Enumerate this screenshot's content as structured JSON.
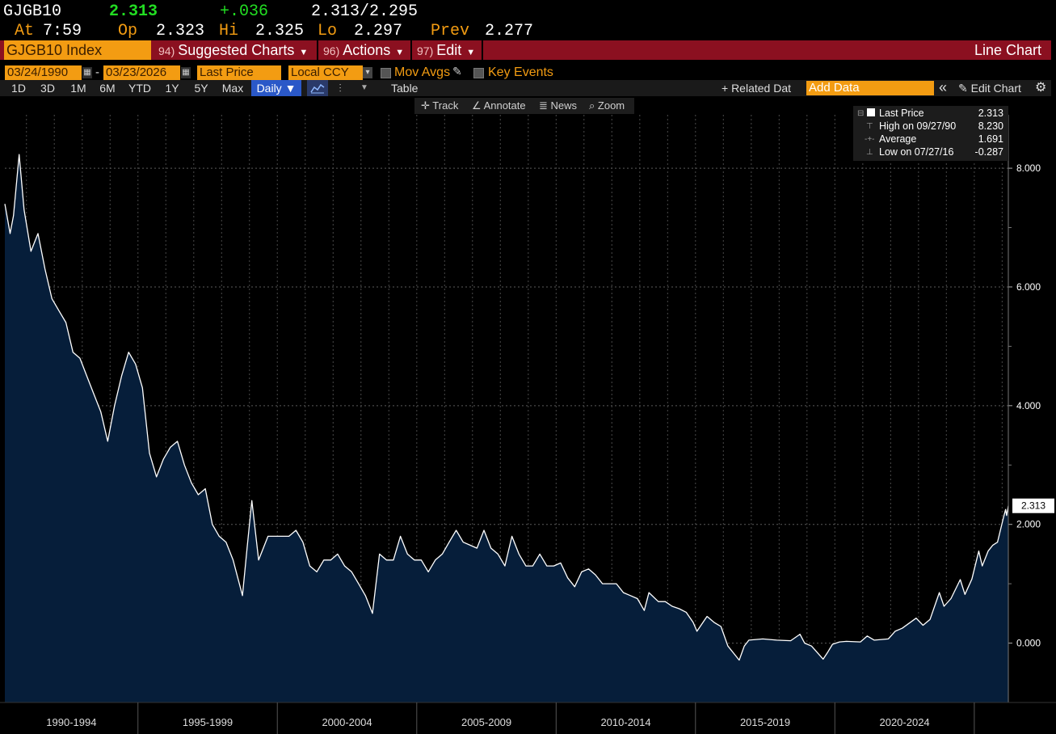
{
  "quote": {
    "ticker": "GJGB10",
    "last": "2.313",
    "change": "+.036",
    "bid_ask": "2.313/2.295",
    "at_label": "At",
    "time": "7:59",
    "open_label": "Op",
    "open": "2.323",
    "high_label": "Hi",
    "high": "2.325",
    "low_label": "Lo",
    "low": "2.297",
    "prev_label": "Prev",
    "prev": "2.277"
  },
  "command_bar": {
    "security": "GJGB10 Index",
    "suggested_num": "94)",
    "suggested_label": "Suggested Charts",
    "actions_num": "96)",
    "actions_label": "Actions",
    "edit_num": "97)",
    "edit_label": "Edit",
    "title": "Line Chart"
  },
  "settings": {
    "start_date": "03/24/1990",
    "dash": "-",
    "end_date": "03/23/2026",
    "field": "Last Price",
    "currency": "Local CCY",
    "mov_avgs": "Mov Avgs",
    "key_events": "Key Events"
  },
  "range_bar": {
    "buttons": [
      "1D",
      "3D",
      "1M",
      "6M",
      "YTD",
      "1Y",
      "5Y",
      "Max"
    ],
    "frequency": "Daily ▼",
    "table": "Table",
    "related": "+ Related Dat",
    "add_data_placeholder": "Add Data",
    "collapse": "«",
    "edit_chart": "Edit Chart"
  },
  "chart_tools": {
    "track": "Track",
    "annotate": "Annotate",
    "news": "News",
    "zoom": "Zoom"
  },
  "legend": {
    "last_label": "Last Price",
    "last_value": "2.313",
    "high_label": "High on 09/27/90",
    "high_value": "8.230",
    "avg_label": "Average",
    "avg_value": "1.691",
    "low_label": "Low on 07/27/16",
    "low_value": "-0.287"
  },
  "colors": {
    "accent_orange": "#f39c12",
    "command_red": "#8b1020",
    "quote_green": "#22dd22",
    "area_fill": "#061e3a",
    "line": "#ffffff"
  },
  "chart_data": {
    "type": "area",
    "series": [
      {
        "name": "Last Price",
        "points": [
          [
            "1990-03-24",
            7.4
          ],
          [
            "1990-06-01",
            6.9
          ],
          [
            "1990-07-15",
            7.2
          ],
          [
            "1990-09-27",
            8.23
          ],
          [
            "1990-12-01",
            7.3
          ],
          [
            "1991-03-01",
            6.6
          ],
          [
            "1991-06-01",
            6.9
          ],
          [
            "1991-09-01",
            6.3
          ],
          [
            "1991-12-01",
            5.8
          ],
          [
            "1992-03-01",
            5.6
          ],
          [
            "1992-06-01",
            5.4
          ],
          [
            "1992-09-01",
            4.9
          ],
          [
            "1992-12-01",
            4.8
          ],
          [
            "1993-03-01",
            4.5
          ],
          [
            "1993-06-01",
            4.2
          ],
          [
            "1993-09-01",
            3.9
          ],
          [
            "1993-12-01",
            3.4
          ],
          [
            "1994-03-01",
            4.0
          ],
          [
            "1994-06-01",
            4.5
          ],
          [
            "1994-09-01",
            4.9
          ],
          [
            "1994-12-01",
            4.7
          ],
          [
            "1995-03-01",
            4.3
          ],
          [
            "1995-06-01",
            3.2
          ],
          [
            "1995-09-01",
            2.8
          ],
          [
            "1995-12-01",
            3.1
          ],
          [
            "1996-03-01",
            3.3
          ],
          [
            "1996-06-01",
            3.4
          ],
          [
            "1996-09-01",
            3.0
          ],
          [
            "1996-12-01",
            2.7
          ],
          [
            "1997-03-01",
            2.5
          ],
          [
            "1997-06-01",
            2.6
          ],
          [
            "1997-09-01",
            2.0
          ],
          [
            "1997-12-01",
            1.8
          ],
          [
            "1998-03-01",
            1.7
          ],
          [
            "1998-06-01",
            1.4
          ],
          [
            "1998-10-01",
            0.8
          ],
          [
            "1998-12-01",
            1.6
          ],
          [
            "1999-02-01",
            2.4
          ],
          [
            "1999-05-01",
            1.4
          ],
          [
            "1999-09-01",
            1.8
          ],
          [
            "1999-12-01",
            1.8
          ],
          [
            "2000-03-01",
            1.8
          ],
          [
            "2000-06-01",
            1.8
          ],
          [
            "2000-09-01",
            1.9
          ],
          [
            "2000-12-01",
            1.7
          ],
          [
            "2001-03-01",
            1.3
          ],
          [
            "2001-06-01",
            1.2
          ],
          [
            "2001-09-01",
            1.4
          ],
          [
            "2001-12-01",
            1.4
          ],
          [
            "2002-03-01",
            1.5
          ],
          [
            "2002-06-01",
            1.3
          ],
          [
            "2002-09-01",
            1.2
          ],
          [
            "2002-12-01",
            1.0
          ],
          [
            "2003-03-01",
            0.8
          ],
          [
            "2003-06-01",
            0.5
          ],
          [
            "2003-09-01",
            1.5
          ],
          [
            "2003-12-01",
            1.4
          ],
          [
            "2004-03-01",
            1.4
          ],
          [
            "2004-06-01",
            1.8
          ],
          [
            "2004-09-01",
            1.5
          ],
          [
            "2004-12-01",
            1.4
          ],
          [
            "2005-03-01",
            1.4
          ],
          [
            "2005-06-01",
            1.2
          ],
          [
            "2005-09-01",
            1.4
          ],
          [
            "2005-12-01",
            1.5
          ],
          [
            "2006-03-01",
            1.7
          ],
          [
            "2006-06-01",
            1.9
          ],
          [
            "2006-09-01",
            1.7
          ],
          [
            "2006-12-01",
            1.65
          ],
          [
            "2007-03-01",
            1.6
          ],
          [
            "2007-06-01",
            1.9
          ],
          [
            "2007-09-01",
            1.6
          ],
          [
            "2007-12-01",
            1.5
          ],
          [
            "2008-03-01",
            1.3
          ],
          [
            "2008-06-01",
            1.8
          ],
          [
            "2008-09-01",
            1.5
          ],
          [
            "2008-12-01",
            1.3
          ],
          [
            "2009-03-01",
            1.3
          ],
          [
            "2009-06-01",
            1.5
          ],
          [
            "2009-09-01",
            1.3
          ],
          [
            "2009-12-01",
            1.3
          ],
          [
            "2010-03-01",
            1.35
          ],
          [
            "2010-06-01",
            1.1
          ],
          [
            "2010-09-01",
            0.95
          ],
          [
            "2010-12-01",
            1.2
          ],
          [
            "2011-03-01",
            1.25
          ],
          [
            "2011-06-01",
            1.15
          ],
          [
            "2011-09-01",
            1.0
          ],
          [
            "2011-12-01",
            1.0
          ],
          [
            "2012-03-01",
            1.0
          ],
          [
            "2012-06-01",
            0.85
          ],
          [
            "2012-09-01",
            0.8
          ],
          [
            "2012-12-01",
            0.75
          ],
          [
            "2013-03-01",
            0.55
          ],
          [
            "2013-05-01",
            0.85
          ],
          [
            "2013-09-01",
            0.7
          ],
          [
            "2013-12-01",
            0.7
          ],
          [
            "2014-03-01",
            0.62
          ],
          [
            "2014-06-01",
            0.58
          ],
          [
            "2014-09-01",
            0.52
          ],
          [
            "2014-12-01",
            0.35
          ],
          [
            "2015-01-20",
            0.2
          ],
          [
            "2015-06-01",
            0.45
          ],
          [
            "2015-09-01",
            0.35
          ],
          [
            "2015-12-01",
            0.28
          ],
          [
            "2016-03-01",
            -0.05
          ],
          [
            "2016-07-27",
            -0.287
          ],
          [
            "2016-10-01",
            -0.05
          ],
          [
            "2016-12-01",
            0.05
          ],
          [
            "2017-06-01",
            0.07
          ],
          [
            "2017-12-01",
            0.05
          ],
          [
            "2018-06-01",
            0.04
          ],
          [
            "2018-10-01",
            0.15
          ],
          [
            "2018-12-01",
            0.0
          ],
          [
            "2019-03-01",
            -0.05
          ],
          [
            "2019-08-01",
            -0.27
          ],
          [
            "2019-10-01",
            -0.15
          ],
          [
            "2019-12-01",
            -0.02
          ],
          [
            "2020-03-01",
            0.02
          ],
          [
            "2020-06-01",
            0.03
          ],
          [
            "2020-12-01",
            0.02
          ],
          [
            "2021-03-01",
            0.12
          ],
          [
            "2021-06-01",
            0.05
          ],
          [
            "2021-12-01",
            0.07
          ],
          [
            "2022-03-01",
            0.2
          ],
          [
            "2022-06-01",
            0.25
          ],
          [
            "2022-12-01",
            0.42
          ],
          [
            "2023-03-01",
            0.3
          ],
          [
            "2023-06-01",
            0.4
          ],
          [
            "2023-10-01",
            0.85
          ],
          [
            "2023-12-01",
            0.62
          ],
          [
            "2024-03-01",
            0.75
          ],
          [
            "2024-07-01",
            1.07
          ],
          [
            "2024-09-01",
            0.82
          ],
          [
            "2024-12-01",
            1.08
          ],
          [
            "2025-03-01",
            1.55
          ],
          [
            "2025-04-15",
            1.3
          ],
          [
            "2025-07-01",
            1.55
          ],
          [
            "2025-09-01",
            1.65
          ],
          [
            "2025-11-01",
            1.7
          ],
          [
            "2026-01-15",
            2.1
          ],
          [
            "2026-02-15",
            2.25
          ],
          [
            "2026-03-01",
            2.15
          ],
          [
            "2026-03-23",
            2.313
          ]
        ]
      }
    ],
    "x_range": [
      "1990-03-24",
      "2026-03-23"
    ],
    "ylim": [
      -1.0,
      8.9
    ],
    "y_ticks": [
      "0.000",
      "2.000",
      "4.000",
      "6.000",
      "8.000"
    ],
    "x_tick_labels": [
      "1990-1994",
      "1995-1999",
      "2000-2004",
      "2005-2009",
      "2010-2014",
      "2015-2019",
      "2020-2024"
    ],
    "last_label": "2.313",
    "grid": true,
    "legend_position": "top-right"
  }
}
